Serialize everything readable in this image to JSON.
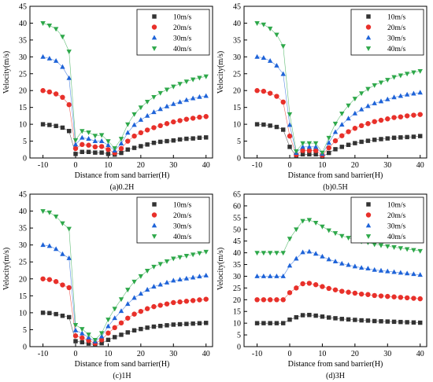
{
  "chart_data": [
    {
      "type": "line",
      "caption": "(a)0.2H",
      "xlabel": "Distance from sand barrier(H)",
      "ylabel": "Velocity(m/s)",
      "xlim": [
        -14,
        42
      ],
      "ylim": [
        0,
        45
      ],
      "xticks": [
        "-10",
        "0",
        "10",
        "20",
        "30",
        "40"
      ],
      "yticks": [
        "0",
        "5",
        "10",
        "15",
        "20",
        "25",
        "30",
        "35",
        "40",
        "45"
      ],
      "legend_position": "top-right",
      "x": [
        -10,
        -8,
        -6,
        -4,
        -2,
        0,
        2,
        4,
        6,
        8,
        10,
        12,
        14,
        16,
        18,
        20,
        22,
        24,
        26,
        28,
        30,
        32,
        34,
        36,
        38,
        40
      ],
      "series": [
        {
          "name": "10m/s",
          "color": "#333333",
          "marker": "square",
          "values": [
            10,
            9.8,
            9.5,
            9,
            8,
            1.2,
            1.8,
            1.8,
            1.6,
            1.6,
            1.2,
            1,
            1.5,
            2.5,
            3,
            3.5,
            4,
            4.5,
            4.8,
            5,
            5.2,
            5.5,
            5.7,
            5.8,
            6,
            6.1
          ]
        },
        {
          "name": "20m/s",
          "color": "#e8302a",
          "marker": "circle",
          "values": [
            20,
            19.6,
            19,
            18,
            15.8,
            2.8,
            4,
            3.8,
            3.3,
            3.4,
            2.5,
            1.5,
            2.8,
            5,
            6.5,
            7.5,
            8.3,
            9,
            9.6,
            10.2,
            10.7,
            11.1,
            11.5,
            11.8,
            12.1,
            12.3
          ]
        },
        {
          "name": "30m/s",
          "color": "#1e63d8",
          "marker": "triangle-up",
          "values": [
            30,
            29.5,
            28.8,
            27,
            23.7,
            4,
            6,
            5.7,
            5,
            5,
            3.8,
            2.2,
            4.3,
            7.5,
            9.8,
            11.3,
            12.5,
            13.6,
            14.5,
            15.3,
            16,
            16.6,
            17.2,
            17.7,
            18.1,
            18.4
          ]
        },
        {
          "name": "40m/s",
          "color": "#2ea84a",
          "marker": "triangle-down",
          "values": [
            40,
            39.3,
            38.3,
            36,
            31.6,
            5.3,
            8,
            7.6,
            6.6,
            6.8,
            5,
            2.9,
            5.7,
            10,
            13,
            15,
            16.7,
            18.1,
            19.3,
            20.3,
            21.2,
            22,
            22.7,
            23.3,
            23.8,
            24.2
          ]
        }
      ]
    },
    {
      "type": "line",
      "caption": "(b)0.5H",
      "xlabel": "Distance from sand barrier(H)",
      "ylabel": "Velocity(m/s)",
      "xlim": [
        -14,
        42
      ],
      "ylim": [
        0,
        45
      ],
      "xticks": [
        "-10",
        "0",
        "10",
        "20",
        "30",
        "40"
      ],
      "yticks": [
        "0",
        "5",
        "10",
        "15",
        "20",
        "25",
        "30",
        "35",
        "40",
        "45"
      ],
      "legend_position": "top-right",
      "x": [
        -10,
        -8,
        -6,
        -4,
        -2,
        0,
        2,
        4,
        6,
        8,
        10,
        12,
        14,
        16,
        18,
        20,
        22,
        24,
        26,
        28,
        30,
        32,
        34,
        36,
        38,
        40
      ],
      "series": [
        {
          "name": "10m/s",
          "color": "#333333",
          "marker": "square",
          "values": [
            10,
            9.9,
            9.6,
            9.2,
            8.4,
            3.3,
            0.5,
            1.1,
            1.1,
            1.1,
            0.4,
            1.5,
            2.6,
            3.3,
            3.9,
            4.4,
            4.8,
            5.1,
            5.4,
            5.6,
            5.8,
            6,
            6.1,
            6.2,
            6.3,
            6.5
          ]
        },
        {
          "name": "20m/s",
          "color": "#e8302a",
          "marker": "circle",
          "values": [
            20,
            19.8,
            19.2,
            18.3,
            16.6,
            6.5,
            1,
            2.2,
            2.2,
            2.2,
            0.8,
            3,
            5.1,
            6.6,
            7.8,
            8.8,
            9.6,
            10.2,
            10.8,
            11.2,
            11.6,
            12,
            12.2,
            12.5,
            12.7,
            12.9
          ]
        },
        {
          "name": "30m/s",
          "color": "#1e63d8",
          "marker": "triangle-up",
          "values": [
            30,
            29.7,
            28.8,
            27.4,
            24.9,
            9.8,
            1.5,
            3.3,
            3.3,
            3.3,
            1.2,
            4.5,
            7.7,
            9.9,
            11.7,
            13.2,
            14.4,
            15.4,
            16.2,
            16.8,
            17.4,
            18,
            18.4,
            18.8,
            19.1,
            19.4
          ]
        },
        {
          "name": "40m/s",
          "color": "#2ea84a",
          "marker": "triangle-down",
          "values": [
            40,
            39.6,
            38.4,
            36.6,
            33.2,
            13,
            2,
            4.4,
            4.4,
            4.4,
            1.6,
            6,
            10.2,
            13.2,
            15.6,
            17.6,
            19.2,
            20.5,
            21.6,
            22.4,
            23.2,
            24,
            24.5,
            25,
            25.4,
            25.8
          ]
        }
      ]
    },
    {
      "type": "line",
      "caption": "(c)1H",
      "xlabel": "Distance from sand barrier(H)",
      "ylabel": "Velocity(m/s)",
      "xlim": [
        -14,
        42
      ],
      "ylim": [
        0,
        45
      ],
      "xticks": [
        "-10",
        "0",
        "10",
        "20",
        "30",
        "40"
      ],
      "yticks": [
        "0",
        "5",
        "10",
        "15",
        "20",
        "25",
        "30",
        "35",
        "40",
        "45"
      ],
      "legend_position": "top-right",
      "x": [
        -10,
        -8,
        -6,
        -4,
        -2,
        0,
        2,
        4,
        6,
        8,
        10,
        12,
        14,
        16,
        18,
        20,
        22,
        24,
        26,
        28,
        30,
        32,
        34,
        36,
        38,
        40
      ],
      "series": [
        {
          "name": "10m/s",
          "color": "#333333",
          "marker": "square",
          "values": [
            10,
            9.9,
            9.6,
            9.1,
            8.7,
            1.6,
            1.3,
            0.9,
            0.5,
            1,
            2,
            2.8,
            3.5,
            4.2,
            4.8,
            5.2,
            5.6,
            5.9,
            6.1,
            6.3,
            6.5,
            6.6,
            6.7,
            6.8,
            6.9,
            7
          ]
        },
        {
          "name": "20m/s",
          "color": "#e8302a",
          "marker": "circle",
          "values": [
            20,
            19.8,
            19.2,
            18.2,
            17.4,
            3.2,
            2.6,
            1.8,
            1,
            2,
            4,
            5.6,
            7,
            8.4,
            9.6,
            10.4,
            11.2,
            11.8,
            12.2,
            12.6,
            13,
            13.2,
            13.4,
            13.6,
            13.8,
            14
          ]
        },
        {
          "name": "30m/s",
          "color": "#1e63d8",
          "marker": "triangle-up",
          "values": [
            30,
            29.7,
            28.8,
            27.3,
            26.1,
            4.8,
            3.9,
            2.7,
            1.5,
            3,
            6,
            8.4,
            10.5,
            12.6,
            14.4,
            15.6,
            16.8,
            17.7,
            18.3,
            18.9,
            19.5,
            19.8,
            20.1,
            20.4,
            20.7,
            21
          ]
        },
        {
          "name": "40m/s",
          "color": "#2ea84a",
          "marker": "triangle-down",
          "values": [
            40,
            39.6,
            38.4,
            36.4,
            34.8,
            6.4,
            5.2,
            3.6,
            2,
            4,
            8,
            11.2,
            14,
            16.8,
            19.2,
            20.8,
            22.4,
            23.6,
            24.4,
            25.2,
            26,
            26.4,
            26.8,
            27.2,
            27.6,
            28
          ]
        }
      ]
    },
    {
      "type": "line",
      "caption": "(d)3H",
      "xlabel": "Distance from sand barrier(H)",
      "ylabel": "Velocity(m/s)",
      "xlim": [
        -14,
        42
      ],
      "ylim": [
        0,
        65
      ],
      "xticks": [
        "-10",
        "0",
        "10",
        "20",
        "30",
        "40"
      ],
      "yticks": [
        "0",
        "5",
        "10",
        "15",
        "20",
        "25",
        "30",
        "35",
        "40",
        "45",
        "50",
        "55",
        "60",
        "65"
      ],
      "legend_position": "top-right",
      "x": [
        -10,
        -8,
        -6,
        -4,
        -2,
        0,
        2,
        4,
        6,
        8,
        10,
        12,
        14,
        16,
        18,
        20,
        22,
        24,
        26,
        28,
        30,
        32,
        34,
        36,
        38,
        40
      ],
      "series": [
        {
          "name": "10m/s",
          "color": "#333333",
          "marker": "square",
          "values": [
            10,
            10,
            10,
            10,
            10,
            11.5,
            12.5,
            13.4,
            13.5,
            13.2,
            12.8,
            12.4,
            12.1,
            11.8,
            11.6,
            11.4,
            11.2,
            11.1,
            10.9,
            10.8,
            10.7,
            10.6,
            10.5,
            10.4,
            10.3,
            10.2
          ]
        },
        {
          "name": "20m/s",
          "color": "#e8302a",
          "marker": "circle",
          "values": [
            20,
            20,
            20,
            20,
            20,
            23,
            25,
            26.8,
            27,
            26.4,
            25.6,
            24.8,
            24.2,
            23.6,
            23.2,
            22.8,
            22.4,
            22.2,
            21.8,
            21.6,
            21.4,
            21.2,
            21,
            20.8,
            20.6,
            20.4
          ]
        },
        {
          "name": "30m/s",
          "color": "#1e63d8",
          "marker": "triangle-up",
          "values": [
            30,
            30,
            30,
            30,
            30,
            34.5,
            37.5,
            40.2,
            40.5,
            39.6,
            38.4,
            37.2,
            36.3,
            35.4,
            34.8,
            34.2,
            33.6,
            33.3,
            32.7,
            32.4,
            32.1,
            31.8,
            31.5,
            31.2,
            30.9,
            30.6
          ]
        },
        {
          "name": "40m/s",
          "color": "#2ea84a",
          "marker": "triangle-down",
          "values": [
            40,
            40,
            40,
            40,
            40,
            46,
            50,
            53.6,
            54,
            52.8,
            51.2,
            49.6,
            48.4,
            47.2,
            46.4,
            45.6,
            44.8,
            44.4,
            43.6,
            43.2,
            42.8,
            42.4,
            42,
            41.6,
            41.2,
            40.8
          ]
        }
      ]
    }
  ]
}
